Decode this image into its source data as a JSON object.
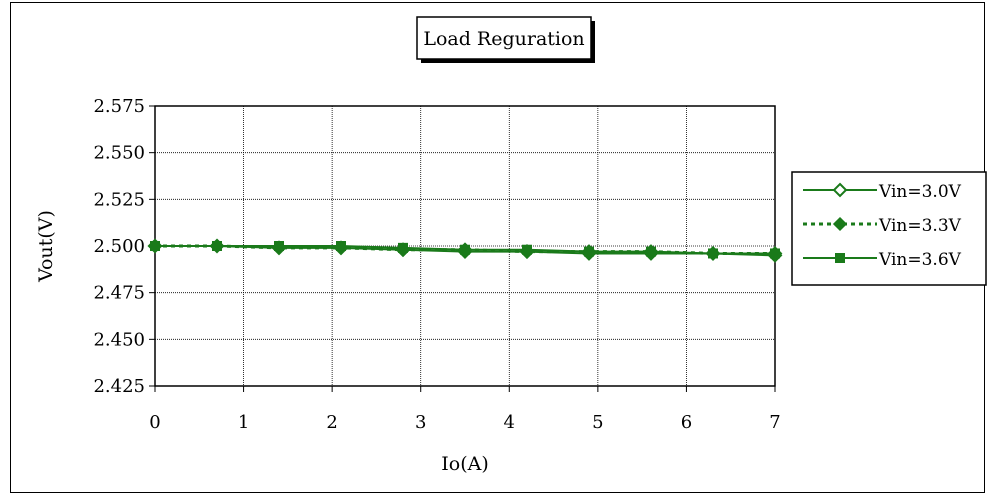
{
  "chart_data": {
    "type": "line",
    "title": "Load Reguration",
    "xlabel": "Io(A)",
    "ylabel": "Vout(V)",
    "xlim": [
      0,
      7
    ],
    "ylim": [
      2.425,
      2.575
    ],
    "xticks": [
      "0",
      "1",
      "2",
      "3",
      "4",
      "5",
      "6",
      "7"
    ],
    "yticks": [
      "2.425",
      "2.450",
      "2.475",
      "2.500",
      "2.525",
      "2.550",
      "2.575"
    ],
    "grid": true,
    "legend_position": "right",
    "x": [
      0,
      0.7,
      1.4,
      2.1,
      2.8,
      3.5,
      4.2,
      4.9,
      5.6,
      6.3,
      7.0
    ],
    "series": [
      {
        "name": "Vin=3.0V",
        "marker": "open-diamond",
        "line": "solid",
        "color": "#1a7a1a",
        "values": [
          2.5,
          2.5,
          2.499,
          2.499,
          2.498,
          2.497,
          2.497,
          2.496,
          2.496,
          2.496,
          2.495
        ]
      },
      {
        "name": "Vin=3.3V",
        "marker": "filled-diamond",
        "line": "dotted",
        "color": "#1a7a1a",
        "values": [
          2.5,
          2.5,
          2.499,
          2.499,
          2.498,
          2.498,
          2.497,
          2.497,
          2.497,
          2.496,
          2.496
        ]
      },
      {
        "name": "Vin=3.6V",
        "marker": "filled-square",
        "line": "solid",
        "color": "#1a7a1a",
        "values": [
          2.5,
          2.5,
          2.5,
          2.5,
          2.499,
          2.498,
          2.498,
          2.497,
          2.497,
          2.496,
          2.496
        ]
      }
    ]
  }
}
